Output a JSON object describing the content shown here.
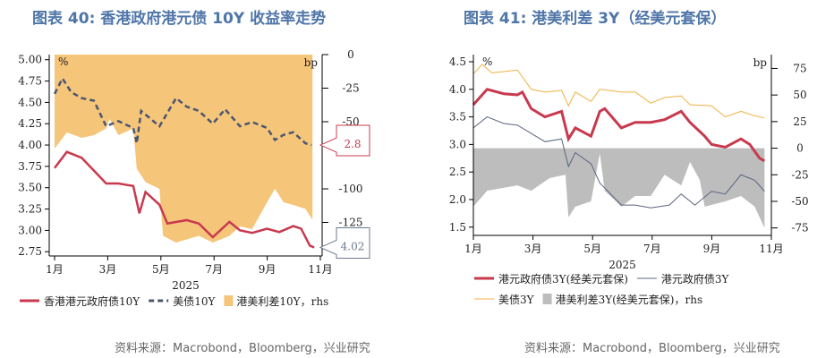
{
  "charts": [
    {
      "title": "图表 40: 香港政府港元债 10Y 收益率走势",
      "source": "资料来源：Macrobond，Bloomberg，兴业研究"
    },
    {
      "title": "图表 41: 港美利差 3Y（经美元套保）",
      "source": "资料来源：Macrobond，Bloomberg，兴业研究"
    }
  ],
  "chart_data": [
    {
      "type": "line",
      "xlabel": "2025",
      "left_unit": "%",
      "right_unit": "bp",
      "x_ticks": [
        "1月",
        "3月",
        "5月",
        "7月",
        "9月",
        "11月"
      ],
      "ylim": [
        2.7,
        5.06
      ],
      "y_ticks": [
        "5.00",
        "4.75",
        "4.50",
        "4.25",
        "4.00",
        "3.75",
        "3.50",
        "3.25",
        "3.00",
        "2.75"
      ],
      "y2lim": [
        -150,
        0
      ],
      "y2_ticks": [
        "0",
        "-25",
        "-50",
        "-100",
        "-125"
      ],
      "callouts": [
        {
          "label": "4.02",
          "color": "#6b7a8f"
        },
        {
          "label": "2.8",
          "color": "#c8394e"
        }
      ],
      "series": [
        {
          "name": "香港港元政府债10Y",
          "axis": "left",
          "style": "line",
          "color": "#c8394e",
          "x": [
            "2025-01-01",
            "2025-01-15",
            "2025-02-01",
            "2025-02-15",
            "2025-03-01",
            "2025-03-15",
            "2025-04-01",
            "2025-04-08",
            "2025-04-15",
            "2025-05-01",
            "2025-05-10",
            "2025-06-01",
            "2025-06-15",
            "2025-07-01",
            "2025-07-20",
            "2025-08-01",
            "2025-08-15",
            "2025-09-01",
            "2025-09-15",
            "2025-10-01",
            "2025-10-10",
            "2025-10-20",
            "2025-10-25"
          ],
          "y": [
            3.73,
            3.92,
            3.85,
            3.7,
            3.55,
            3.55,
            3.52,
            3.2,
            3.45,
            3.3,
            3.08,
            3.12,
            3.08,
            2.92,
            3.1,
            3.0,
            2.97,
            3.02,
            2.98,
            3.05,
            3.02,
            2.82,
            2.8
          ]
        },
        {
          "name": "美债10Y",
          "axis": "left",
          "style": "dash",
          "color": "#4a5670",
          "x": [
            "2025-01-01",
            "2025-01-10",
            "2025-01-20",
            "2025-02-01",
            "2025-02-15",
            "2025-03-01",
            "2025-03-15",
            "2025-04-01",
            "2025-04-05",
            "2025-04-10",
            "2025-05-01",
            "2025-05-20",
            "2025-06-01",
            "2025-06-15",
            "2025-07-01",
            "2025-07-15",
            "2025-08-01",
            "2025-08-15",
            "2025-09-01",
            "2025-09-10",
            "2025-09-20",
            "2025-10-01",
            "2025-10-15",
            "2025-10-22"
          ],
          "y": [
            4.6,
            4.78,
            4.62,
            4.55,
            4.52,
            4.22,
            4.28,
            4.2,
            4.02,
            4.4,
            4.22,
            4.55,
            4.45,
            4.4,
            4.25,
            4.42,
            4.22,
            4.27,
            4.2,
            4.06,
            4.12,
            4.15,
            4.02,
            4.0
          ]
        },
        {
          "name": "港美利差10Y，rhs",
          "axis": "right",
          "style": "area",
          "color": "#f5c57a",
          "x": [
            "2025-01-01",
            "2025-01-15",
            "2025-02-01",
            "2025-02-15",
            "2025-03-01",
            "2025-03-05",
            "2025-03-15",
            "2025-04-01",
            "2025-04-05",
            "2025-04-15",
            "2025-05-01",
            "2025-05-05",
            "2025-05-20",
            "2025-06-15",
            "2025-07-01",
            "2025-07-20",
            "2025-08-01",
            "2025-08-15",
            "2025-09-01",
            "2025-09-10",
            "2025-09-20",
            "2025-10-01",
            "2025-10-15",
            "2025-10-23"
          ],
          "y": [
            -70,
            -58,
            -62,
            -60,
            -55,
            -48,
            -60,
            -55,
            -85,
            -95,
            -100,
            -135,
            -140,
            -135,
            -140,
            -135,
            -128,
            -130,
            -110,
            -100,
            -110,
            -112,
            -115,
            -123
          ]
        }
      ]
    },
    {
      "type": "line",
      "xlabel": "2025",
      "left_unit": "%",
      "right_unit": "bp",
      "x_ticks": [
        "1月",
        "3月",
        "5月",
        "7月",
        "9月",
        "11月"
      ],
      "ylim": [
        1.35,
        4.63
      ],
      "y_ticks": [
        "4.5",
        "4.0",
        "3.5",
        "3.0",
        "2.5",
        "2.0",
        "1.5"
      ],
      "y2lim": [
        -82,
        88
      ],
      "y2_ticks": [
        "75",
        "50",
        "25",
        "0",
        "-25",
        "-50",
        "-75"
      ],
      "series": [
        {
          "name": "港元政府债3Y(经美元套保)",
          "axis": "left",
          "style": "thick",
          "color": "#c8394e",
          "x": [
            "2025-01-01",
            "2025-01-15",
            "2025-02-01",
            "2025-02-15",
            "2025-02-20",
            "2025-03-01",
            "2025-03-15",
            "2025-04-01",
            "2025-04-08",
            "2025-04-15",
            "2025-05-01",
            "2025-05-10",
            "2025-05-15",
            "2025-06-01",
            "2025-06-15",
            "2025-07-01",
            "2025-07-15",
            "2025-08-01",
            "2025-08-10",
            "2025-08-25",
            "2025-09-01",
            "2025-09-15",
            "2025-10-01",
            "2025-10-10",
            "2025-10-20",
            "2025-10-25"
          ],
          "y": [
            3.72,
            4.0,
            3.92,
            3.9,
            3.95,
            3.65,
            3.5,
            3.6,
            3.1,
            3.3,
            3.15,
            3.6,
            3.65,
            3.3,
            3.4,
            3.4,
            3.45,
            3.6,
            3.4,
            3.15,
            3.0,
            2.95,
            3.1,
            3.0,
            2.75,
            2.7
          ]
        },
        {
          "name": "港元政府债3Y",
          "axis": "left",
          "style": "thin",
          "color": "#5a6480",
          "x": [
            "2025-01-01",
            "2025-01-15",
            "2025-02-01",
            "2025-02-15",
            "2025-03-01",
            "2025-03-15",
            "2025-04-01",
            "2025-04-08",
            "2025-04-15",
            "2025-05-01",
            "2025-05-10",
            "2025-06-01",
            "2025-06-15",
            "2025-07-01",
            "2025-07-20",
            "2025-08-01",
            "2025-08-15",
            "2025-09-01",
            "2025-09-15",
            "2025-10-01",
            "2025-10-15",
            "2025-10-25"
          ],
          "y": [
            3.3,
            3.5,
            3.38,
            3.35,
            3.2,
            3.05,
            3.1,
            2.6,
            2.85,
            2.65,
            2.3,
            1.9,
            1.9,
            1.85,
            1.9,
            2.1,
            1.9,
            2.15,
            2.1,
            2.45,
            2.35,
            2.15
          ]
        },
        {
          "name": "美债3Y",
          "axis": "left",
          "style": "thin",
          "color": "#f0b040",
          "x": [
            "2025-01-01",
            "2025-01-10",
            "2025-01-20",
            "2025-02-15",
            "2025-03-01",
            "2025-03-15",
            "2025-04-01",
            "2025-04-08",
            "2025-04-15",
            "2025-05-01",
            "2025-05-10",
            "2025-06-01",
            "2025-06-15",
            "2025-07-01",
            "2025-07-15",
            "2025-08-01",
            "2025-08-10",
            "2025-09-01",
            "2025-09-15",
            "2025-10-01",
            "2025-10-15",
            "2025-10-25"
          ],
          "y": [
            4.28,
            4.45,
            4.3,
            4.35,
            4.0,
            3.95,
            3.98,
            3.7,
            3.95,
            3.78,
            4.0,
            3.95,
            3.95,
            3.75,
            3.85,
            3.88,
            3.72,
            3.7,
            3.5,
            3.6,
            3.52,
            3.48
          ]
        },
        {
          "name": "港美利差3Y(经美元套保)，rhs",
          "axis": "right",
          "style": "area",
          "color": "#bdbdbd",
          "x": [
            "2025-01-01",
            "2025-01-15",
            "2025-02-15",
            "2025-03-01",
            "2025-03-20",
            "2025-04-05",
            "2025-04-08",
            "2025-04-15",
            "2025-05-01",
            "2025-05-10",
            "2025-05-15",
            "2025-06-01",
            "2025-06-15",
            "2025-07-01",
            "2025-07-15",
            "2025-08-01",
            "2025-08-10",
            "2025-08-20",
            "2025-08-25",
            "2025-09-15",
            "2025-10-01",
            "2025-10-15",
            "2025-10-25"
          ],
          "y": [
            -55,
            -40,
            -35,
            -40,
            -28,
            -25,
            -65,
            -55,
            -50,
            -5,
            -40,
            -55,
            -45,
            -45,
            -25,
            -35,
            -13,
            -30,
            -55,
            -50,
            -45,
            -55,
            -75
          ]
        }
      ]
    }
  ]
}
